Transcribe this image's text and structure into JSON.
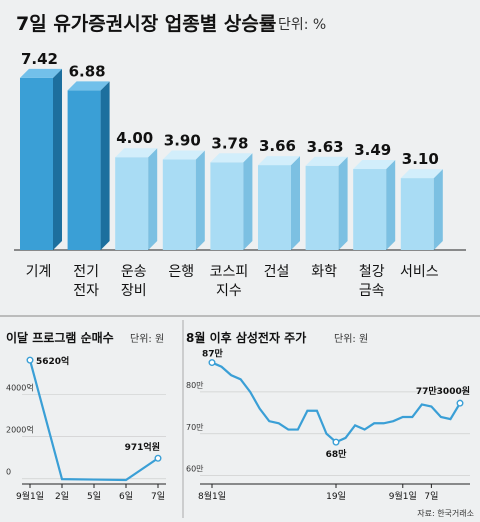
{
  "chart_data": [
    {
      "type": "bar",
      "title": "7일 유가증권시장 업종별 상승률",
      "unit": "단위: %",
      "categories": [
        [
          "기계"
        ],
        [
          "전기",
          "전자"
        ],
        [
          "운송",
          "장비"
        ],
        [
          "은행"
        ],
        [
          "코스피",
          "지수"
        ],
        [
          "건설"
        ],
        [
          "화학"
        ],
        [
          "철강",
          "금속"
        ],
        [
          "서비스"
        ]
      ],
      "values": [
        7.42,
        6.88,
        4.0,
        3.9,
        3.78,
        3.66,
        3.63,
        3.49,
        3.1
      ],
      "value_labels": [
        "7.42",
        "6.88",
        "4.00",
        "3.90",
        "3.78",
        "3.66",
        "3.63",
        "3.49",
        "3.10"
      ],
      "highlight_count": 2,
      "colors": {
        "highlight_front": "#3a9fd6",
        "highlight_side": "#1d6f9e",
        "highlight_top": "#72c0ea",
        "normal_front": "#a9dcf4",
        "normal_side": "#7cc0e2",
        "normal_top": "#d2eefb"
      },
      "ylim": [
        0,
        8
      ]
    },
    {
      "type": "line",
      "title": "이달 프로그램 순매수",
      "unit": "단위: 원",
      "x_labels": [
        "9월1일",
        "2일",
        "5일",
        "6일",
        "7일"
      ],
      "values": [
        5620,
        -20,
        -40,
        -60,
        971
      ],
      "point_labels": [
        "5620억",
        "",
        "",
        "",
        "971억원"
      ],
      "yticks": [
        0,
        2000,
        4000
      ],
      "ytick_labels": [
        "0",
        "2000억",
        "4000억"
      ],
      "ylim": [
        -250,
        6100
      ],
      "color": "#3a9fd6"
    },
    {
      "type": "line",
      "title": "8월 이후 삼성전자 주가",
      "unit": "단위: 원",
      "x_labels": [
        "8월1일",
        "19일",
        "9월1일",
        "7일"
      ],
      "x_label_positions": [
        0,
        13,
        20,
        23
      ],
      "values": [
        87,
        86,
        84,
        83,
        80,
        76,
        73,
        72.5,
        71,
        71,
        75.5,
        75.5,
        70,
        68,
        69,
        72,
        71,
        72.5,
        72.5,
        73,
        74,
        74,
        77,
        76.5,
        74,
        73.5,
        77.3
      ],
      "point_labels": {
        "0": "87만",
        "13": "68만",
        "26": "77만3000원"
      },
      "yticks": [
        60,
        70,
        80
      ],
      "ytick_labels": [
        "60만",
        "70만",
        "80만"
      ],
      "ylim": [
        58,
        90
      ],
      "color": "#3a9fd6",
      "source": "자료: 한국거래소"
    }
  ]
}
